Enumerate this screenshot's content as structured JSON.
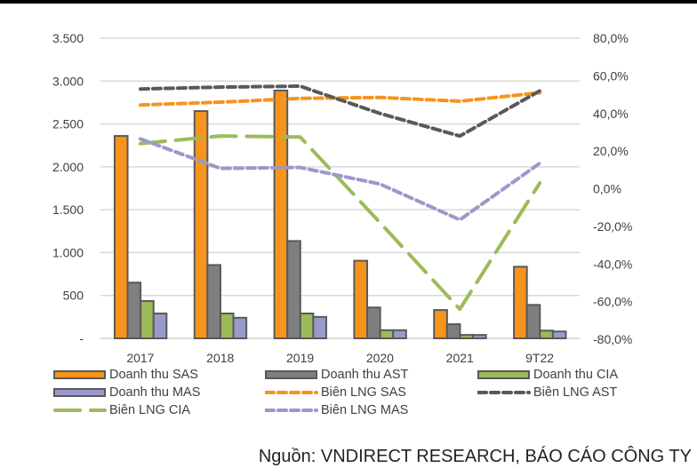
{
  "chart_data": {
    "type": "bar",
    "title": "",
    "categories": [
      "2017",
      "2018",
      "2019",
      "2020",
      "2021",
      "9T22"
    ],
    "left_axis": {
      "label": "",
      "range": [
        0,
        3500
      ],
      "ticks": [
        0,
        500,
        1000,
        1500,
        2000,
        2500,
        3000,
        3500
      ],
      "tick_labels": [
        "-",
        "500",
        "1.000",
        "1.500",
        "2.000",
        "2.500",
        "3.000",
        "3.500"
      ]
    },
    "right_axis": {
      "label": "",
      "range": [
        -80,
        80
      ],
      "ticks": [
        -80,
        -60,
        -40,
        -20,
        0,
        20,
        40,
        60,
        80
      ],
      "tick_labels": [
        "-80,0%",
        "-60,0%",
        "-40,0%",
        "-20,0%",
        "0,0%",
        "20,0%",
        "40,0%",
        "60,0%",
        "80,0%"
      ]
    },
    "grid": true,
    "legend_position": "bottom",
    "bar_series": [
      {
        "name": "Doanh thu SAS",
        "color": "#F7941D",
        "values": [
          2360,
          2650,
          2890,
          905,
          330,
          835
        ]
      },
      {
        "name": "Doanh thu AST",
        "color": "#7F7F7F",
        "values": [
          650,
          855,
          1135,
          360,
          165,
          390
        ]
      },
      {
        "name": "Doanh thu CIA",
        "color": "#9BBB59",
        "values": [
          435,
          290,
          290,
          95,
          40,
          90
        ]
      },
      {
        "name": "Doanh thu MAS",
        "color": "#9999CC",
        "values": [
          290,
          240,
          250,
          95,
          40,
          80
        ]
      }
    ],
    "line_series": [
      {
        "name": "Biên LNG SAS",
        "color": "#F7941D",
        "dash": "short",
        "axis": "right",
        "values": [
          44.5,
          46.0,
          48.0,
          48.5,
          46.5,
          51.0
        ]
      },
      {
        "name": "Biên LNG AST",
        "color": "#595959",
        "dash": "short",
        "axis": "right",
        "values": [
          53.0,
          54.0,
          54.5,
          40.0,
          28.0,
          52.0
        ]
      },
      {
        "name": "Biên LNG CIA",
        "color": "#9BBB59",
        "dash": "long",
        "axis": "right",
        "values": [
          24.0,
          28.0,
          27.5,
          -18.0,
          -64.0,
          3.0
        ]
      },
      {
        "name": "Biên LNG MAS",
        "color": "#9999CC",
        "dash": "short",
        "axis": "right",
        "values": [
          26.5,
          10.8,
          11.3,
          2.5,
          -16.5,
          13.5
        ]
      }
    ]
  },
  "legend": [
    {
      "label": "Doanh thu SAS",
      "kind": "bar",
      "color": "#F7941D"
    },
    {
      "label": "Doanh thu AST",
      "kind": "bar",
      "color": "#7F7F7F"
    },
    {
      "label": "Doanh thu CIA",
      "kind": "bar",
      "color": "#9BBB59"
    },
    {
      "label": "Doanh thu MAS",
      "kind": "bar",
      "color": "#9999CC"
    },
    {
      "label": "Biên LNG SAS",
      "kind": "line-short",
      "color": "#F7941D"
    },
    {
      "label": "Biên LNG AST",
      "kind": "line-short",
      "color": "#595959"
    },
    {
      "label": "Biên LNG CIA",
      "kind": "line-long",
      "color": "#9BBB59"
    },
    {
      "label": "Biên LNG MAS",
      "kind": "line-short",
      "color": "#9999CC"
    }
  ],
  "source": "Nguồn: VNDIRECT RESEARCH, BÁO CÁO CÔNG TY"
}
